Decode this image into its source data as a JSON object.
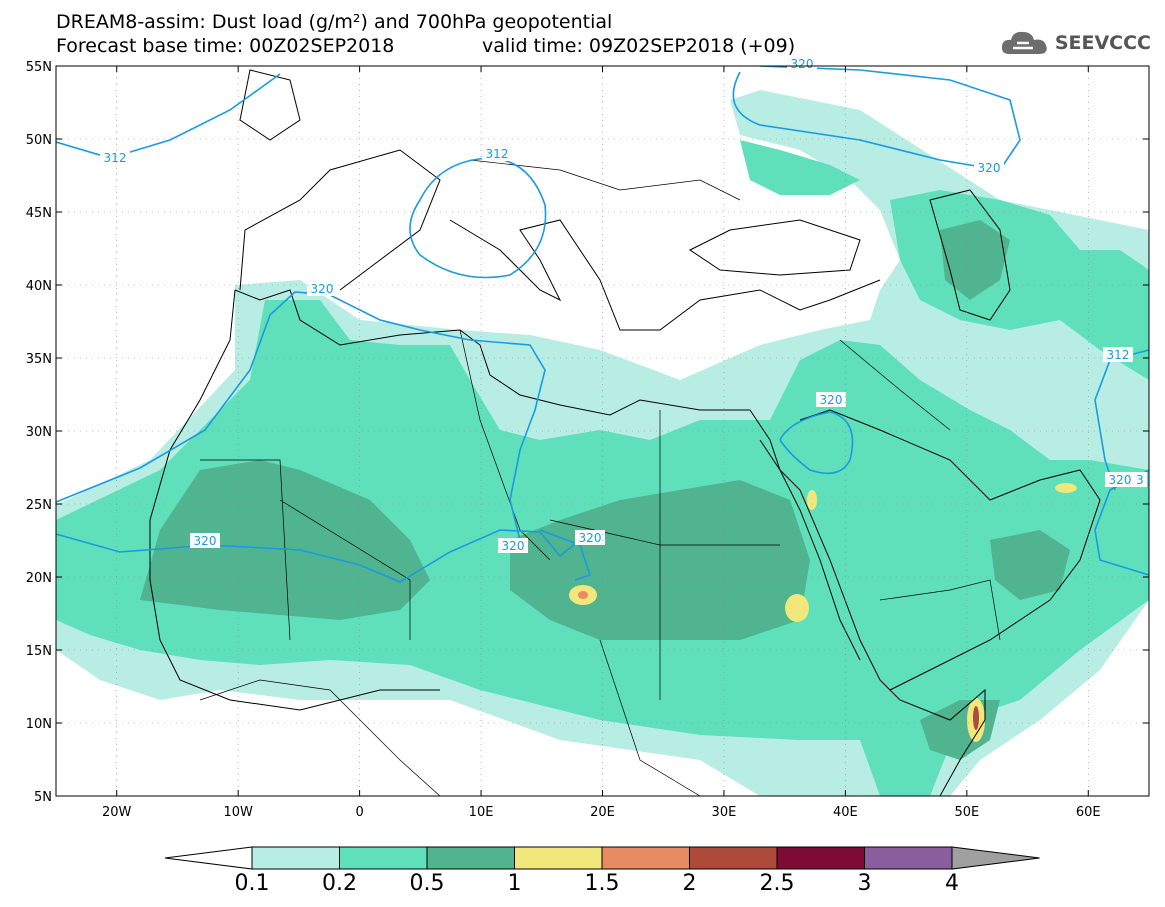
{
  "title": {
    "line1": "DREAM8-assim: Dust load (g/m²) and 700hPa geopotential",
    "line2a": "Forecast base time: 00Z02SEP2018",
    "line2b": "valid time: 09Z02SEP2018 (+09)"
  },
  "logo": {
    "text": "SEEVCCC",
    "icon": "cloud-icon"
  },
  "map": {
    "lon_range": [
      -25,
      65
    ],
    "lat_range": [
      5,
      55
    ],
    "lat_ticks": [
      "55N",
      "50N",
      "45N",
      "40N",
      "35N",
      "30N",
      "25N",
      "20N",
      "15N",
      "10N",
      "5N"
    ],
    "lon_ticks": [
      "20W",
      "10W",
      "0",
      "10E",
      "20E",
      "30E",
      "40E",
      "50E",
      "60E"
    ],
    "contour_labels": [
      "312",
      "312",
      "320",
      "320",
      "320",
      "320",
      "320",
      "320",
      "312",
      "320",
      "320",
      "3"
    ]
  },
  "colorbar": {
    "labels": [
      "0.1",
      "0.2",
      "0.5",
      "1",
      "1.5",
      "2",
      "2.5",
      "3",
      "4"
    ],
    "colors": [
      "#b8ede4",
      "#5fe0bb",
      "#4fb48f",
      "#f1e77a",
      "#e98b62",
      "#ad4a3a",
      "#7d0b33",
      "#8a5e9e",
      "#a0a0a0"
    ]
  },
  "colors": {
    "land_line": "#000000",
    "contour": "#1a9be0"
  }
}
